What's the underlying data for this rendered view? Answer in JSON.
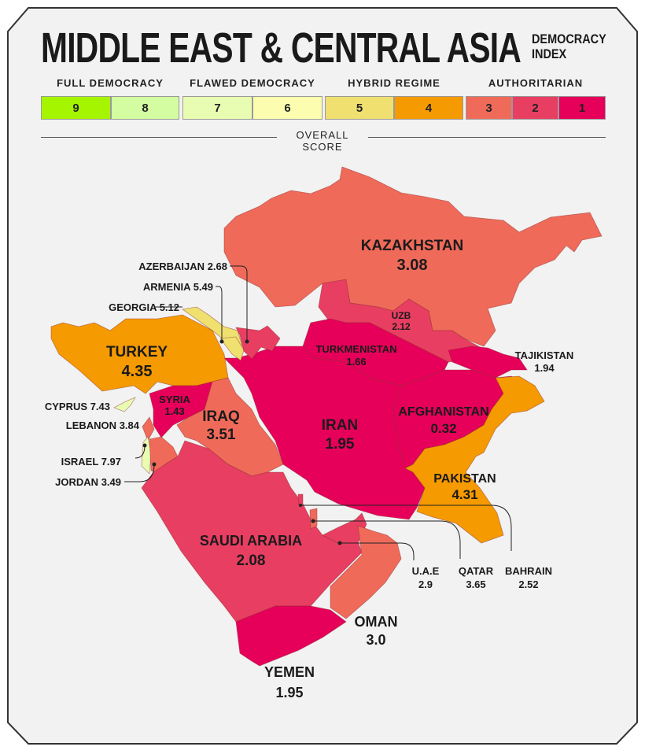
{
  "title": "MIDDLE EAST & CENTRAL ASIA",
  "subtitle_line1": "DEMOCRACY",
  "subtitle_line2": "INDEX",
  "legend": {
    "categories": [
      "FULL DEMOCRACY",
      "FLAWED DEMOCRACY",
      "HYBRID REGIME",
      "AUTHORITARIAN"
    ],
    "scale": [
      {
        "label": "9",
        "color": "#a6f500"
      },
      {
        "label": "8",
        "color": "#d3fda0"
      },
      {
        "label": "7",
        "color": "#e9fdb2"
      },
      {
        "label": "6",
        "color": "#fdfdb0"
      },
      {
        "label": "5",
        "color": "#f0e070"
      },
      {
        "label": "4",
        "color": "#f59a00"
      },
      {
        "label": "3",
        "color": "#f06a5a"
      },
      {
        "label": "2",
        "color": "#e83e62"
      },
      {
        "label": "1",
        "color": "#e6005a"
      }
    ],
    "axis_label": "OVERALL SCORE"
  },
  "countries": {
    "kazakhstan": {
      "name": "KAZAKHSTAN",
      "score": "3.08"
    },
    "uzbekistan": {
      "name": "UZB",
      "score": "2.12"
    },
    "turkmenistan": {
      "name": "TURKMENISTAN",
      "score": "1.66"
    },
    "tajikistan": {
      "name": "TAJIKISTAN",
      "score": "1.94"
    },
    "afghanistan": {
      "name": "AFGHANISTAN",
      "score": "0.32"
    },
    "iran": {
      "name": "IRAN",
      "score": "1.95"
    },
    "pakistan": {
      "name": "PAKISTAN",
      "score": "4.31"
    },
    "turkey": {
      "name": "TURKEY",
      "score": "4.35"
    },
    "georgia": {
      "name": "GEORGIA",
      "score": "5.12"
    },
    "armenia": {
      "name": "ARMENIA",
      "score": "5.49"
    },
    "azerbaijan": {
      "name": "AZERBAIJAN",
      "score": "2.68"
    },
    "syria": {
      "name": "SYRIA",
      "score": "1.43"
    },
    "iraq": {
      "name": "IRAQ",
      "score": "3.51"
    },
    "cyprus": {
      "name": "CYPRUS",
      "score": "7.43"
    },
    "lebanon": {
      "name": "LEBANON",
      "score": "3.84"
    },
    "israel": {
      "name": "ISRAEL",
      "score": "7.97"
    },
    "jordan": {
      "name": "JORDAN",
      "score": "3.49"
    },
    "saudi_arabia": {
      "name": "SAUDI ARABIA",
      "score": "2.08"
    },
    "uae": {
      "name": "U.A.E",
      "score": "2.9"
    },
    "qatar": {
      "name": "QATAR",
      "score": "3.65"
    },
    "bahrain": {
      "name": "BAHRAIN",
      "score": "2.52"
    },
    "oman": {
      "name": "OMAN",
      "score": "3.0"
    },
    "yemen": {
      "name": "YEMEN",
      "score": "1.95"
    }
  }
}
